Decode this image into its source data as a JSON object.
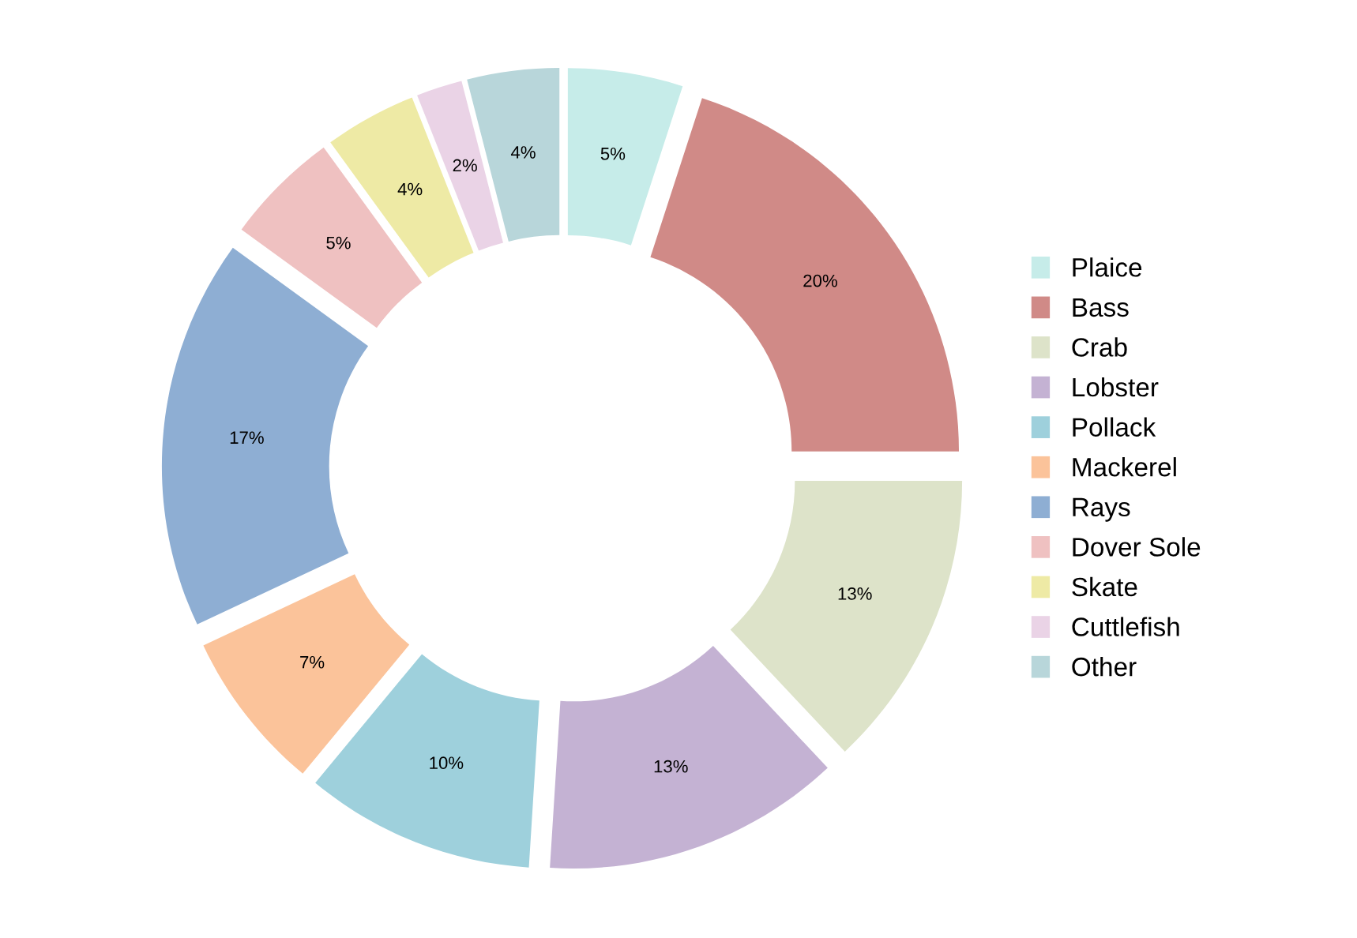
{
  "chart_data": {
    "type": "donut",
    "categories": [
      "Plaice",
      "Bass",
      "Crab",
      "Lobster",
      "Pollack",
      "Mackerel",
      "Rays",
      "Dover Sole",
      "Skate",
      "Cuttlefish",
      "Other"
    ],
    "values": [
      5,
      20,
      13,
      13,
      10,
      7,
      17,
      5,
      4,
      2,
      4
    ],
    "colors": [
      "#c6ece9",
      "#d08a87",
      "#dde3c9",
      "#c4b2d3",
      "#9ed0dc",
      "#fbc39a",
      "#8eaed3",
      "#efc1c1",
      "#eeeaa5",
      "#ead3e6",
      "#b8d6da"
    ],
    "value_labels": [
      "5%",
      "20%",
      "13%",
      "13%",
      "10%",
      "7%",
      "17%",
      "5%",
      "4%",
      "2%",
      "4%"
    ],
    "legend": "right"
  }
}
